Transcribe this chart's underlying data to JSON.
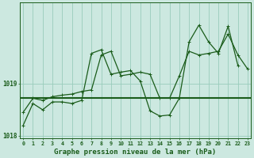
{
  "title": "Graphe pression niveau de la mer (hPa)",
  "background_color": "#cce8e0",
  "plot_bg_color": "#cce8e0",
  "grid_color": "#99ccbb",
  "line_color": "#1a5c1a",
  "marker_color": "#1a5c1a",
  "x_hours": [
    0,
    1,
    2,
    3,
    4,
    5,
    6,
    7,
    8,
    9,
    10,
    11,
    12,
    13,
    14,
    15,
    16,
    17,
    18,
    19,
    20,
    21,
    22,
    23
  ],
  "series1": [
    1018.45,
    1018.72,
    1018.68,
    1018.75,
    1018.78,
    1018.8,
    1018.85,
    1018.88,
    1019.55,
    1019.62,
    1019.15,
    1019.18,
    1019.22,
    1019.18,
    1018.72,
    1018.72,
    1019.15,
    1019.62,
    1019.55,
    1019.58,
    1019.62,
    1019.95,
    1019.55,
    1019.28
  ],
  "series2": [
    1018.2,
    1018.62,
    1018.5,
    1018.65,
    1018.65,
    1018.62,
    1018.68,
    1019.58,
    1019.65,
    1019.18,
    1019.22,
    1019.25,
    1019.05,
    1018.48,
    1018.38,
    1018.4,
    1018.72,
    1019.8,
    1020.12,
    1019.8,
    1019.58,
    1020.1,
    1019.35,
    null
  ],
  "series3_flat": 1018.72,
  "ylim": [
    1017.95,
    1020.55
  ],
  "yticks": [
    1018,
    1019
  ],
  "xlim": [
    -0.3,
    23.3
  ]
}
